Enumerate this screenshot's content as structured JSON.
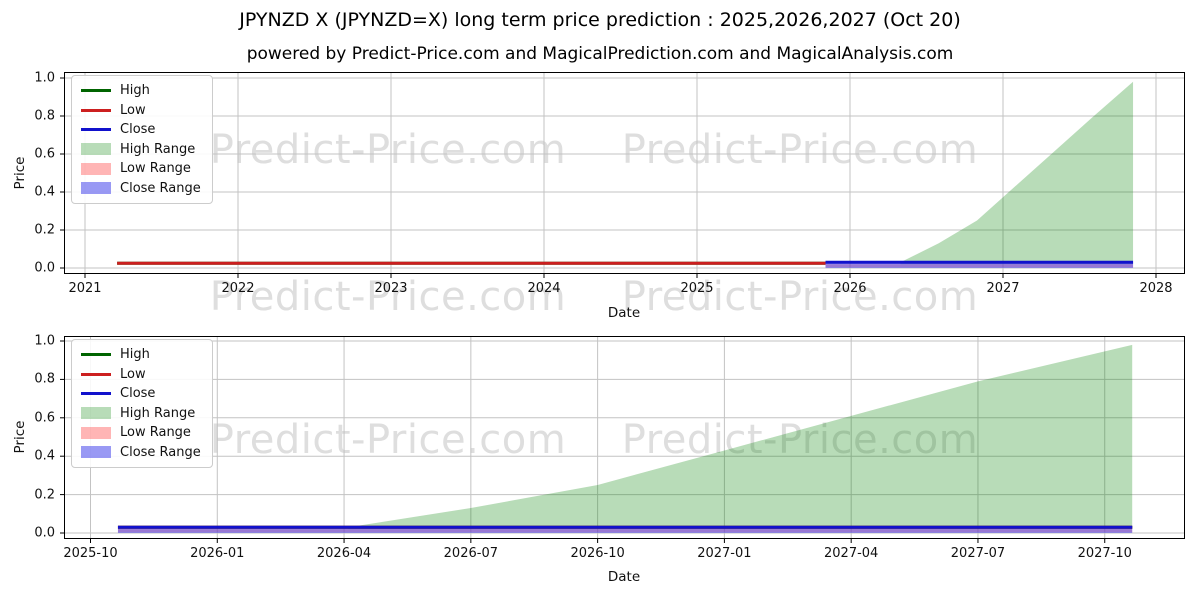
{
  "title": "JPYNZD X (JPYNZD=X) long term price prediction : 2025,2026,2027 (Oct 20)",
  "subtitle": "powered by Predict-Price.com and MagicalPrediction.com and MagicalAnalysis.com",
  "watermark_text": "Predict-Price.com",
  "colors": {
    "high": "#006400",
    "low": "#cc1f1f",
    "close": "#1111cc",
    "high_range": "rgba(0,128,0,0.28)",
    "low_range": "rgba(255,60,60,0.38)",
    "close_range": "rgba(70,70,235,0.55)"
  },
  "legend": {
    "items": [
      {
        "label": "High",
        "swatch": "line",
        "color_key": "high"
      },
      {
        "label": "Low",
        "swatch": "line",
        "color_key": "low"
      },
      {
        "label": "Close",
        "swatch": "line",
        "color_key": "close"
      },
      {
        "label": "High Range",
        "swatch": "patch",
        "color_key": "high_range"
      },
      {
        "label": "Low Range",
        "swatch": "patch",
        "color_key": "low_range"
      },
      {
        "label": "Close Range",
        "swatch": "patch",
        "color_key": "close_range"
      }
    ]
  },
  "chart_data": [
    {
      "type": "line+area",
      "title": "",
      "xlabel": "Date",
      "ylabel": "Price",
      "x_unit": "year",
      "xlim": [
        2020.86,
        2028.19
      ],
      "ylim": [
        0,
        1
      ],
      "grid": true,
      "legend_position": "upper-left",
      "x_ticks": [
        {
          "v": 2021,
          "label": "2021"
        },
        {
          "v": 2022,
          "label": "2022"
        },
        {
          "v": 2023,
          "label": "2023"
        },
        {
          "v": 2024,
          "label": "2024"
        },
        {
          "v": 2025,
          "label": "2025"
        },
        {
          "v": 2026,
          "label": "2026"
        },
        {
          "v": 2027,
          "label": "2027"
        },
        {
          "v": 2028,
          "label": "2028"
        }
      ],
      "y_ticks": [
        {
          "v": 0,
          "label": "0.0"
        },
        {
          "v": 0.2,
          "label": "0.2"
        },
        {
          "v": 0.4,
          "label": "0.4"
        },
        {
          "v": 0.6,
          "label": "0.6"
        },
        {
          "v": 0.8,
          "label": "0.8"
        },
        {
          "v": 1.0,
          "label": "1.0"
        }
      ],
      "series": [
        {
          "name": "High Range",
          "kind": "area",
          "color_key": "high_range",
          "baseline": 0.02,
          "points": [
            [
              2026.33,
              0.03
            ],
            [
              2026.58,
              0.13
            ],
            [
              2026.83,
              0.25
            ],
            [
              2027.08,
              0.43
            ],
            [
              2027.33,
              0.61
            ],
            [
              2027.58,
              0.79
            ],
            [
              2027.85,
              0.98
            ]
          ]
        },
        {
          "name": "Low Range",
          "kind": "area",
          "color_key": "low_range",
          "baseline": 0.004,
          "points": [
            [
              2025.84,
              0.02
            ],
            [
              2027.85,
              0.02
            ]
          ]
        },
        {
          "name": "Close Range",
          "kind": "area",
          "color_key": "close_range",
          "baseline": 0.0,
          "points": [
            [
              2025.84,
              0.035
            ],
            [
              2027.85,
              0.035
            ]
          ]
        },
        {
          "name": "High",
          "kind": "line",
          "color_key": "high",
          "points": [
            [
              2021.21,
              0.025
            ],
            [
              2025.84,
              0.025
            ]
          ]
        },
        {
          "name": "Low",
          "kind": "line",
          "color_key": "low",
          "points": [
            [
              2021.21,
              0.025
            ],
            [
              2025.84,
              0.025
            ]
          ]
        },
        {
          "name": "Close",
          "kind": "line",
          "color_key": "close",
          "points": [
            [
              2025.84,
              0.03
            ],
            [
              2027.85,
              0.03
            ]
          ]
        }
      ]
    },
    {
      "type": "line+area",
      "title": "",
      "xlabel": "Date",
      "ylabel": "Price",
      "x_unit": "months-from-2025-10",
      "xlim": [
        -0.63,
        25.9
      ],
      "ylim": [
        0,
        1
      ],
      "grid": true,
      "legend_position": "upper-left",
      "x_ticks": [
        {
          "v": 0,
          "label": "2025-10"
        },
        {
          "v": 3,
          "label": "2026-01"
        },
        {
          "v": 6,
          "label": "2026-04"
        },
        {
          "v": 9,
          "label": "2026-07"
        },
        {
          "v": 12,
          "label": "2026-10"
        },
        {
          "v": 15,
          "label": "2027-01"
        },
        {
          "v": 18,
          "label": "2027-04"
        },
        {
          "v": 21,
          "label": "2027-07"
        },
        {
          "v": 24,
          "label": "2027-10"
        }
      ],
      "y_ticks": [
        {
          "v": 0,
          "label": "0.0"
        },
        {
          "v": 0.2,
          "label": "0.2"
        },
        {
          "v": 0.4,
          "label": "0.4"
        },
        {
          "v": 0.6,
          "label": "0.6"
        },
        {
          "v": 0.8,
          "label": "0.8"
        },
        {
          "v": 1.0,
          "label": "1.0"
        }
      ],
      "series": [
        {
          "name": "High Range",
          "kind": "area",
          "color_key": "high_range",
          "baseline": 0.02,
          "points": [
            [
              6.1,
              0.03
            ],
            [
              9,
              0.13
            ],
            [
              12,
              0.25
            ],
            [
              15,
              0.43
            ],
            [
              18,
              0.61
            ],
            [
              21,
              0.79
            ],
            [
              24.65,
              0.98
            ]
          ]
        },
        {
          "name": "Low Range",
          "kind": "area",
          "color_key": "low_range",
          "baseline": 0.004,
          "points": [
            [
              0.65,
              0.02
            ],
            [
              24.65,
              0.02
            ]
          ]
        },
        {
          "name": "Close Range",
          "kind": "area",
          "color_key": "close_range",
          "baseline": 0.0,
          "points": [
            [
              0.65,
              0.035
            ],
            [
              24.65,
              0.035
            ]
          ]
        },
        {
          "name": "High",
          "kind": "line",
          "color_key": "high",
          "points": [
            [
              0.65,
              0.03
            ],
            [
              24.65,
              0.03
            ]
          ]
        },
        {
          "name": "Low",
          "kind": "line",
          "color_key": "low",
          "points": [
            [
              0.65,
              0.03
            ],
            [
              24.65,
              0.03
            ]
          ]
        },
        {
          "name": "Close",
          "kind": "line",
          "color_key": "close",
          "points": [
            [
              0.65,
              0.03
            ],
            [
              24.65,
              0.03
            ]
          ]
        }
      ]
    }
  ]
}
